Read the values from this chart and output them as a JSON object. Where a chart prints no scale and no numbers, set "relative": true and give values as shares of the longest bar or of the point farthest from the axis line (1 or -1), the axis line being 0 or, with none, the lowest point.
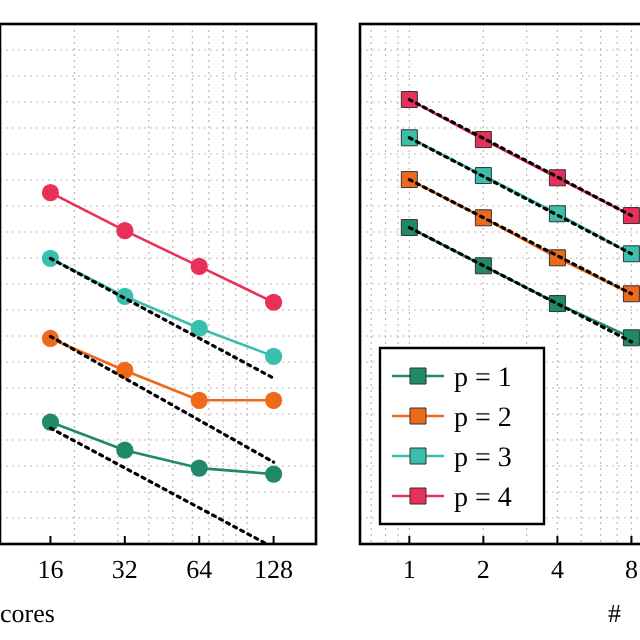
{
  "chart_data": [
    {
      "type": "line",
      "relative": true,
      "log": "x",
      "xlabel": "cores",
      "xlim": [
        10,
        190
      ],
      "xticks": [
        16,
        32,
        64,
        128
      ],
      "grid": true,
      "marker": "circle",
      "legend": false,
      "x": [
        16,
        32,
        64,
        128
      ],
      "series": [
        {
          "color": "#e8305a",
          "values": [
            1.0,
            0.892,
            0.79,
            0.688
          ]
        },
        {
          "color": "#3bbfad",
          "values": [
            0.813,
            0.705,
            0.614,
            0.534
          ]
        },
        {
          "color": "#ee6a1a",
          "values": [
            0.585,
            0.494,
            0.409,
            0.409
          ]
        },
        {
          "color": "#1f8a6a",
          "values": [
            0.347,
            0.267,
            0.216,
            0.199
          ]
        },
        {
          "color": "#000000",
          "marker": "none",
          "line_style": "dotted",
          "x": [
            16,
            128
          ],
          "values": [
            0.813,
            0.472
          ]
        },
        {
          "color": "#000000",
          "marker": "none",
          "line_style": "dotted",
          "x": [
            16,
            128
          ],
          "values": [
            0.591,
            0.233
          ]
        },
        {
          "color": "#000000",
          "marker": "none",
          "line_style": "dotted",
          "x": [
            16,
            120
          ],
          "values": [
            0.33,
            0.0
          ]
        }
      ]
    },
    {
      "type": "line",
      "relative": true,
      "log": "x",
      "xlabel": "#",
      "xlim": [
        0.63,
        9
      ],
      "xticks": [
        1,
        2,
        4,
        8
      ],
      "grid": true,
      "marker": "square",
      "legend": "bottom left",
      "x": [
        1,
        2,
        4,
        8
      ],
      "series": [
        {
          "name": "p = 1",
          "color": "#1f8a6a",
          "values": [
            0.712,
            0.626,
            0.541,
            0.464
          ]
        },
        {
          "name": "p = 2",
          "color": "#ee6a1a",
          "values": [
            0.82,
            0.734,
            0.644,
            0.563
          ]
        },
        {
          "name": "p = 3",
          "color": "#3bbfad",
          "values": [
            0.914,
            0.829,
            0.743,
            0.653
          ]
        },
        {
          "name": "p = 4",
          "color": "#e8305a",
          "values": [
            1.0,
            0.91,
            0.824,
            0.739
          ]
        },
        {
          "color": "#000000",
          "marker": "none",
          "line_style": "dotted",
          "x": [
            1,
            8
          ],
          "values": [
            0.712,
            0.455
          ]
        },
        {
          "color": "#000000",
          "marker": "none",
          "line_style": "dotted",
          "x": [
            1,
            8
          ],
          "values": [
            0.82,
            0.563
          ]
        },
        {
          "color": "#000000",
          "marker": "none",
          "line_style": "dotted",
          "x": [
            1,
            8
          ],
          "values": [
            0.914,
            0.653
          ]
        },
        {
          "color": "#000000",
          "marker": "none",
          "line_style": "dotted",
          "x": [
            1,
            8
          ],
          "values": [
            1.0,
            0.739
          ]
        }
      ]
    }
  ]
}
